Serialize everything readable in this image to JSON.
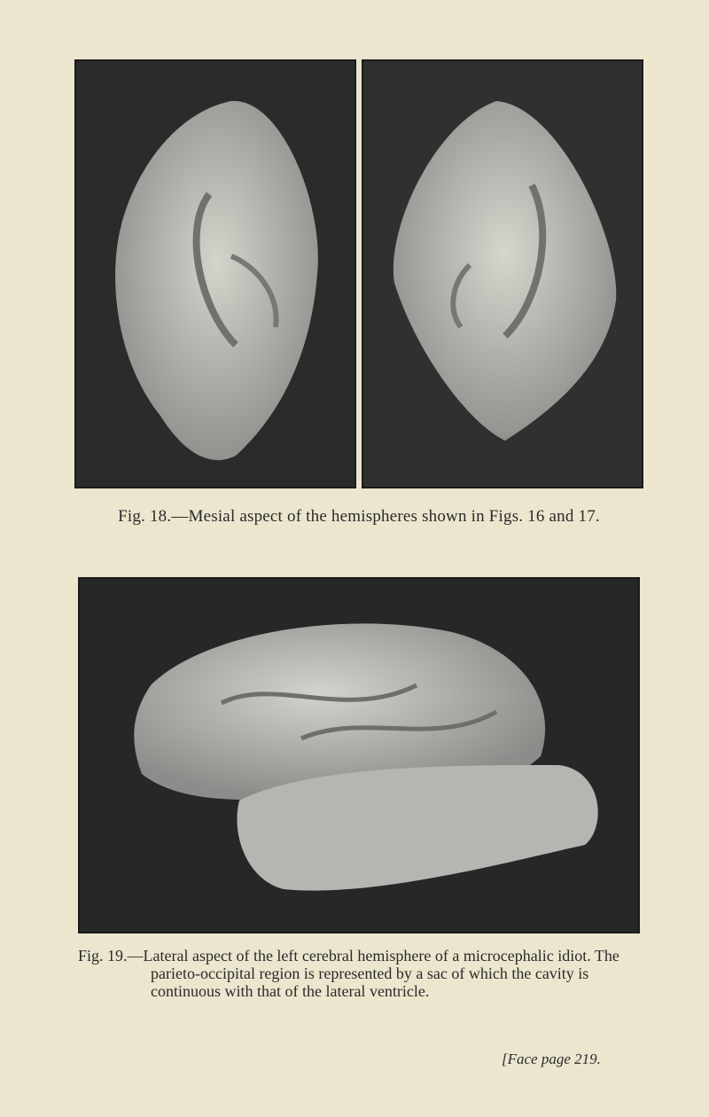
{
  "figures": [
    {
      "caption": "Fig. 18.—Mesial aspect of the hemispheres shown in Figs. 16 and 17."
    },
    {
      "caption": "Fig. 19.—Lateral aspect of the left cerebral hemisphere of a microcephalic idiot. The parieto-occipital region is represented by a sac of which the cavity is continuous with that of the lateral ventricle."
    }
  ],
  "footer": "[Face page 219."
}
